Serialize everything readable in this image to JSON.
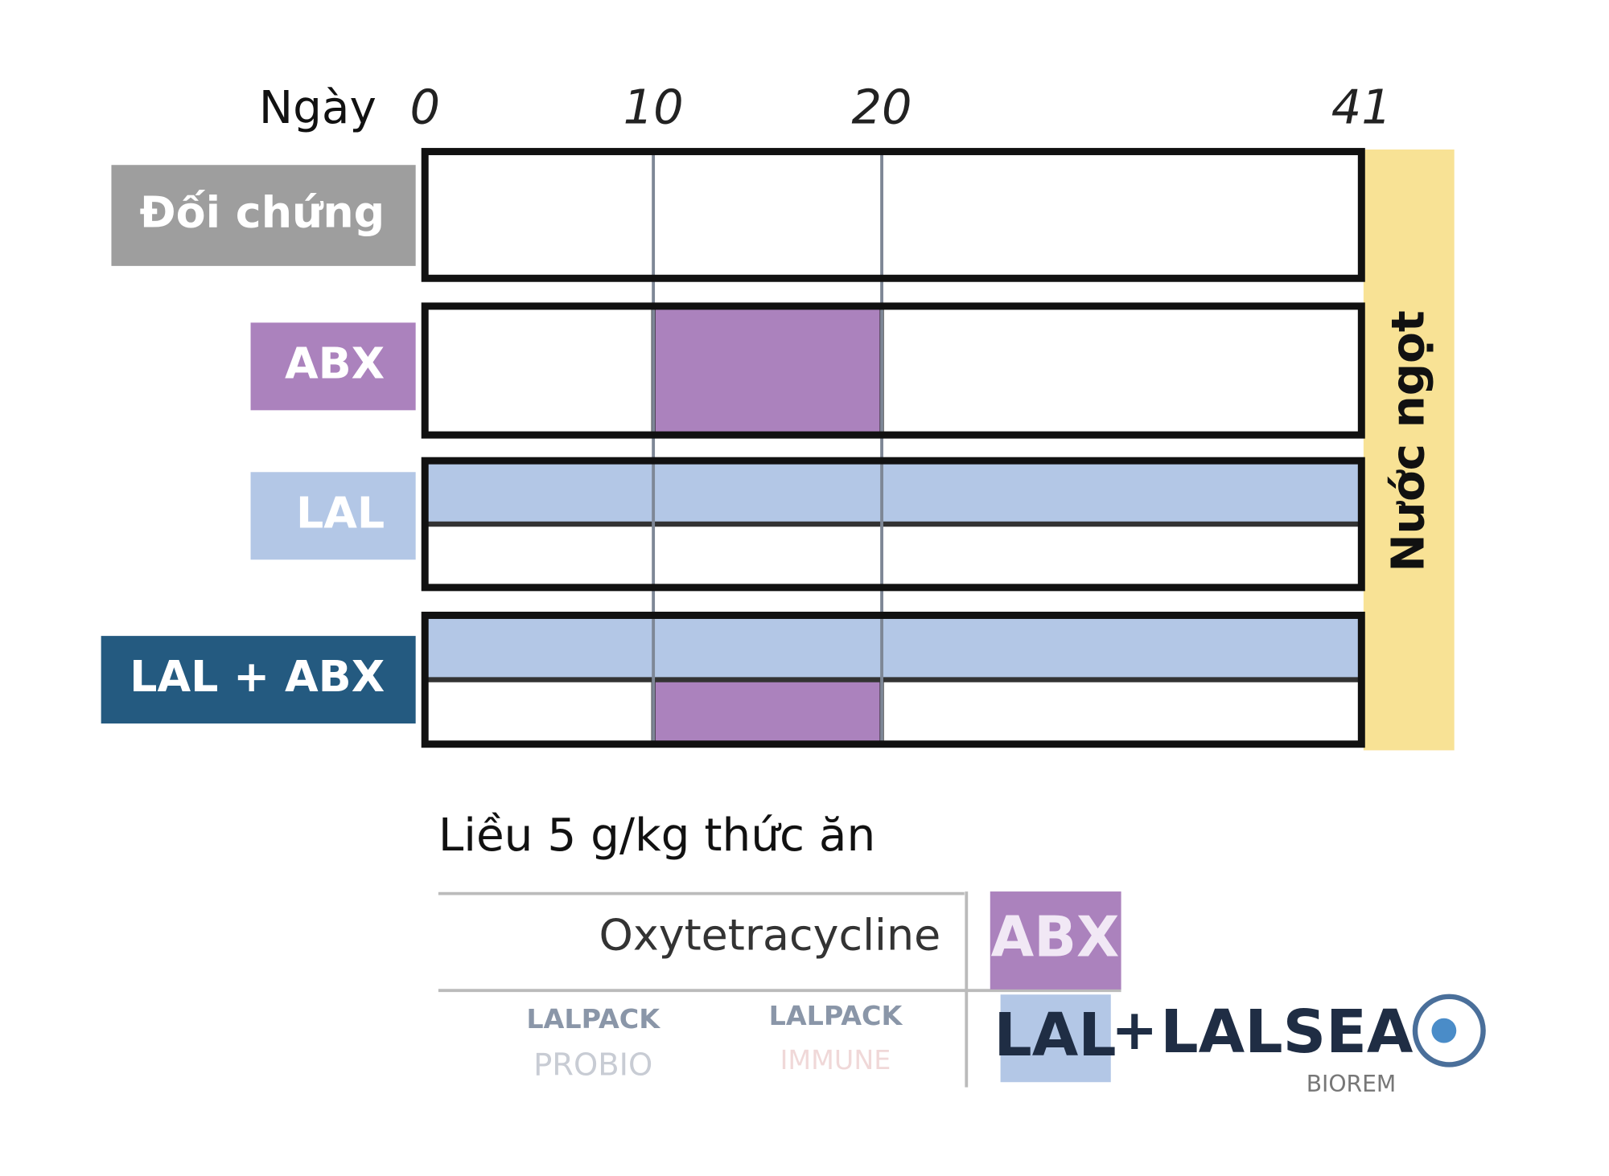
{
  "axis": {
    "label": "Ngày",
    "ticks": [
      0,
      10,
      20,
      41
    ]
  },
  "groups": [
    {
      "label": "Đối chứng",
      "color": "#9e9e9e",
      "lal": false
    },
    {
      "label": "ABX",
      "color": "#ab82bd",
      "lal": false,
      "abx": [
        10,
        20
      ]
    },
    {
      "label": "LAL",
      "color": "#b3c7e6",
      "lal": true
    },
    {
      "label": "LAL + ABX",
      "color": "#245a80",
      "lal": true,
      "abx": [
        10,
        20
      ]
    }
  ],
  "lal_color": "#b3c7e6",
  "abx_color": "#ab82bd",
  "water_color": "#f8e295",
  "water": "Nước ngọt",
  "dose": "Liều 5 g/kg thức ăn",
  "legend": {
    "abx_drug": "Oxytetracycline",
    "abx_tag": "ABX",
    "lal_products": [
      {
        "name": "LALPACK",
        "sub": "PROBIO"
      },
      {
        "name": "LALPACK",
        "sub": "IMMUNE"
      }
    ],
    "lal_tag": "LAL",
    "plus": "+",
    "lalsea": "LALSEA",
    "lalsea_sub": "BIOREM"
  }
}
